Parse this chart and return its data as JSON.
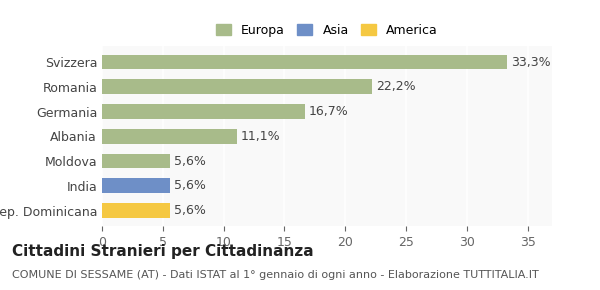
{
  "categories": [
    "Rep. Dominicana",
    "India",
    "Moldova",
    "Albania",
    "Germania",
    "Romania",
    "Svizzera"
  ],
  "values": [
    5.6,
    5.6,
    5.6,
    11.1,
    16.7,
    22.2,
    33.3
  ],
  "labels": [
    "5,6%",
    "5,6%",
    "5,6%",
    "11,1%",
    "16,7%",
    "22,2%",
    "33,3%"
  ],
  "bar_colors": [
    "#f5c842",
    "#6e8fc7",
    "#a8bb8a",
    "#a8bb8a",
    "#a8bb8a",
    "#a8bb8a",
    "#a8bb8a"
  ],
  "legend_items": [
    {
      "label": "Europa",
      "color": "#a8bb8a"
    },
    {
      "label": "Asia",
      "color": "#6e8fc7"
    },
    {
      "label": "America",
      "color": "#f5c842"
    }
  ],
  "xlim": [
    0,
    37
  ],
  "xticks": [
    0,
    5,
    10,
    15,
    20,
    25,
    30,
    35
  ],
  "title": "Cittadini Stranieri per Cittadinanza",
  "subtitle": "COMUNE DI SESSAME (AT) - Dati ISTAT al 1° gennaio di ogni anno - Elaborazione TUTTITALIA.IT",
  "background_color": "#ffffff",
  "plot_background": "#f9f9f9",
  "grid_color": "#ffffff",
  "bar_height": 0.6,
  "label_fontsize": 9,
  "tick_fontsize": 9,
  "title_fontsize": 11,
  "subtitle_fontsize": 8
}
